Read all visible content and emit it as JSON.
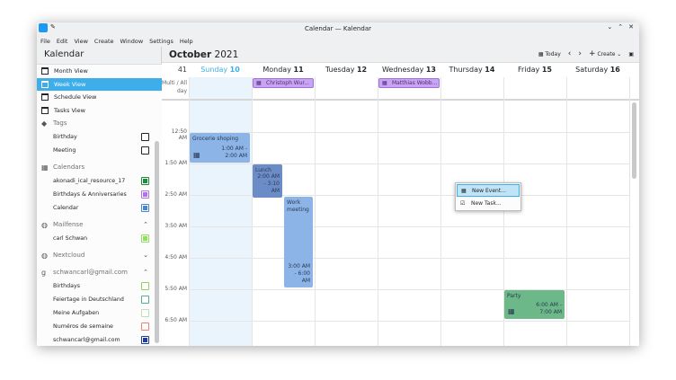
{
  "window": {
    "title": "Calendar — Kalendar"
  },
  "menu": [
    "File",
    "Edit",
    "View",
    "Create",
    "Window",
    "Settings",
    "Help"
  ],
  "sidebar": {
    "title": "Kalendar",
    "views": [
      {
        "label": "Month View"
      },
      {
        "label": "Week View",
        "selected": true
      },
      {
        "label": "Schedule View"
      },
      {
        "label": "Tasks View"
      }
    ],
    "sections": [
      {
        "label": "Tags",
        "icon": "tag-icon",
        "items": [
          {
            "label": "Birthday"
          },
          {
            "label": "Meeting"
          }
        ]
      },
      {
        "label": "Calendars",
        "icon": "calendar-icon",
        "items": [
          {
            "label": "akonadi_ical_resource_17",
            "color": "#1e8a3c",
            "filled": true
          },
          {
            "label": "Birthdays & Anniversaries",
            "color": "#b070f0",
            "filled": true
          },
          {
            "label": "Calendar",
            "color": "#4a86d0",
            "filled": true
          }
        ]
      },
      {
        "label": "Mailfense",
        "icon": "globe-icon",
        "chevron": "up",
        "items": [
          {
            "label": "carl Schwan",
            "color": "#90e060",
            "filled": true
          }
        ]
      },
      {
        "label": "Nextcloud",
        "icon": "globe-icon",
        "chevron": "down",
        "items": []
      },
      {
        "label": "schwancarl@gmail.com",
        "icon": "google-icon",
        "chevron": "up",
        "items": [
          {
            "label": "Birthdays",
            "color": "#90d060"
          },
          {
            "label": "Feiertage in Deutschland",
            "color": "#50b090"
          },
          {
            "label": "Meine Aufgaben",
            "color": "#c0e0b0"
          },
          {
            "label": "Numéros de semaine",
            "color": "#f08070"
          },
          {
            "label": "schwancarl@gmail.com",
            "color": "#1f3f9f",
            "filled": true
          }
        ]
      }
    ]
  },
  "header": {
    "month": "October",
    "year": "2021",
    "today": "Today",
    "create": "Create"
  },
  "week": {
    "number": "41",
    "allday_label": "Multi / All day",
    "days": [
      {
        "name": "Sunday",
        "num": "10",
        "today": true
      },
      {
        "name": "Monday",
        "num": "11"
      },
      {
        "name": "Tuesday",
        "num": "12"
      },
      {
        "name": "Wednesday",
        "num": "13"
      },
      {
        "name": "Thursday",
        "num": "14"
      },
      {
        "name": "Friday",
        "num": "15"
      },
      {
        "name": "Saturday",
        "num": "16"
      }
    ]
  },
  "times": [
    "12:50 AM",
    "1:50 AM",
    "2:50 AM",
    "3:50 AM",
    "4:50 AM",
    "5:50 AM",
    "6:50 AM"
  ],
  "allday_events": [
    {
      "title": "Christoph Wur...",
      "day": 1
    },
    {
      "title": "Matthias Wobb...",
      "day": 3
    }
  ],
  "events": [
    {
      "title": "Grocerie shoping",
      "time": "1:00 AM - 2:00 AM",
      "color": "#8cb4e6"
    },
    {
      "title": "Lunch",
      "time": "2:00 AM - 3:10 AM",
      "color": "#6c8cc8"
    },
    {
      "title": "Work meeting",
      "time": "3:00 AM - 6:00 AM",
      "color": "#8cb4e6"
    },
    {
      "title": "Party",
      "time": "6:00 AM - 7:00 AM",
      "color": "#6cb888"
    }
  ],
  "context_menu": {
    "items": [
      "New Event...",
      "New Task..."
    ]
  }
}
